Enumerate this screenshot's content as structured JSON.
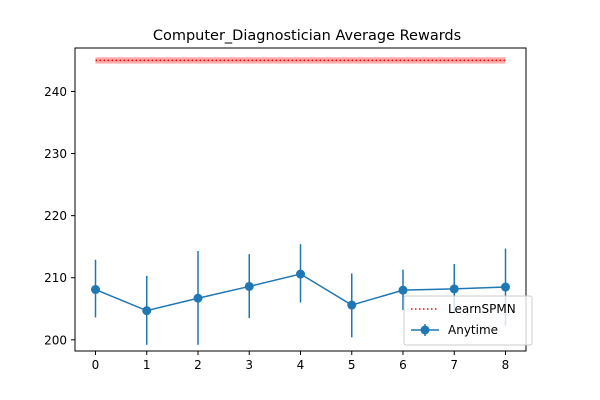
{
  "chart_data": {
    "type": "line",
    "title": "Computer_Diagnostician Average Rewards",
    "xlabel": "",
    "ylabel": "",
    "xlim": [
      -0.4,
      8.4
    ],
    "ylim": [
      198.2,
      247.0
    ],
    "x_ticks": [
      0,
      1,
      2,
      3,
      4,
      5,
      6,
      7,
      8
    ],
    "y_ticks": [
      200,
      210,
      220,
      230,
      240
    ],
    "grid": false,
    "legend_position": "lower-right",
    "baseline": {
      "name": "LearnSPMN",
      "value": 245.0,
      "band": [
        244.5,
        245.5
      ],
      "color": "#ff0000",
      "band_color": "#ff9999",
      "style": "dotted"
    },
    "series": [
      {
        "name": "Anytime",
        "color": "#1f77b4",
        "x": [
          0,
          1,
          2,
          3,
          4,
          5,
          6,
          7,
          8
        ],
        "y": [
          208.1,
          204.7,
          206.7,
          208.6,
          210.6,
          205.6,
          208.0,
          208.2,
          208.5
        ],
        "err_low": [
          203.6,
          199.2,
          199.2,
          203.5,
          206.0,
          200.4,
          204.8,
          204.3,
          202.3
        ],
        "err_high": [
          212.9,
          210.3,
          214.3,
          213.8,
          215.4,
          210.7,
          211.3,
          212.2,
          214.7
        ]
      }
    ]
  }
}
